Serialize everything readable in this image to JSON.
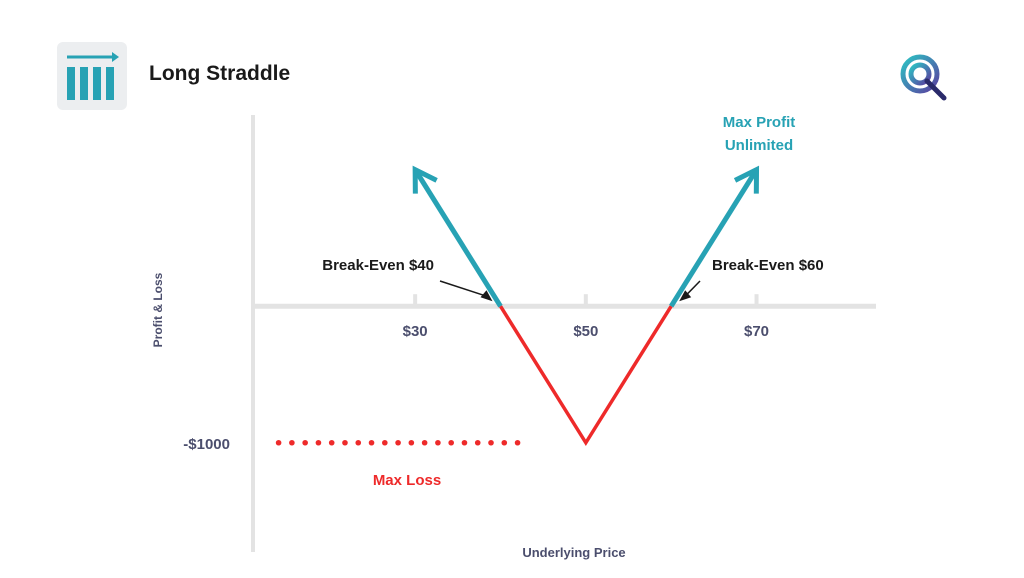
{
  "header": {
    "title": "Long Straddle",
    "icon": "bar-chart-icon"
  },
  "logo": {
    "icon": "q-logo-icon"
  },
  "colors": {
    "profit": "#27a2b4",
    "loss": "#ee2a2a",
    "axis": "#e3e3e3",
    "label": "#4b4e6d",
    "text": "#1a1a1a"
  },
  "chart_data": {
    "type": "line",
    "xlabel": "Underlying Price",
    "ylabel": "Profit & Loss",
    "x_ticks": [
      {
        "value": 30,
        "label": "$30"
      },
      {
        "value": 50,
        "label": "$50"
      },
      {
        "value": 70,
        "label": "$70"
      }
    ],
    "y_ticks": [
      {
        "value": -1000,
        "label": "-$1000"
      }
    ],
    "xlim": [
      11,
      84
    ],
    "ylim": [
      -1800,
      1400
    ],
    "series": [
      {
        "segment": "loss",
        "x": [
          40,
          50,
          60
        ],
        "y": [
          0,
          -1000,
          0
        ]
      },
      {
        "segment": "profit-left",
        "x": [
          40,
          30
        ],
        "y": [
          0,
          1000
        ]
      },
      {
        "segment": "profit-right",
        "x": [
          60,
          70
        ],
        "y": [
          0,
          1000
        ]
      }
    ],
    "max_loss_line": {
      "x": [
        14,
        42
      ],
      "y": -1000
    },
    "annotations": [
      {
        "text": "Break-Even $40",
        "x": 40,
        "y": 0
      },
      {
        "text": "Break-Even $60",
        "x": 60,
        "y": 0
      },
      {
        "text": "Max Profit",
        "x": 70,
        "y": 1000
      },
      {
        "text": "Unlimited",
        "x": 70,
        "y": 1000
      },
      {
        "text": "Max Loss",
        "x": 25,
        "y": -1000
      }
    ]
  }
}
